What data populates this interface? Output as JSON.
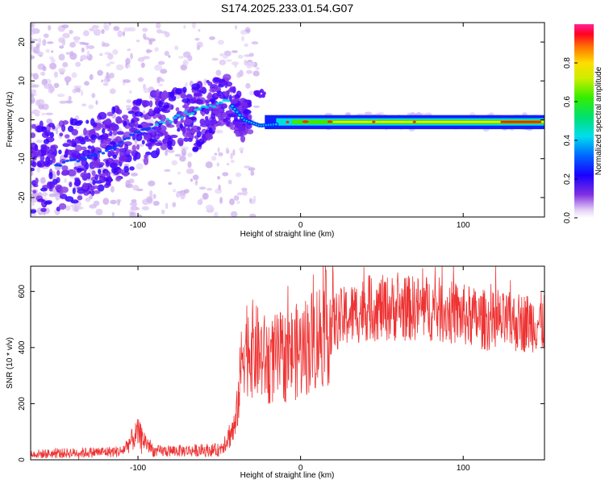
{
  "title": "S174.2025.233.01.54.G07",
  "chart_data": [
    {
      "type": "heatmap",
      "name": "spectrogram",
      "xlabel": "Height of straight line (km)",
      "ylabel": "Frequency (Hz)",
      "xlim": [
        -166,
        150
      ],
      "ylim": [
        -25,
        25
      ],
      "xticks": [
        -100,
        0,
        100
      ],
      "yticks": [
        20,
        10,
        0,
        -10,
        -20
      ],
      "colorbar": {
        "label": "Normalized spectral amplitude",
        "range": [
          0.0,
          1.0
        ],
        "ticks": [
          0.0,
          0.2,
          0.4,
          0.6,
          0.8
        ]
      },
      "ridge": [
        {
          "x": -150,
          "y": -12
        },
        {
          "x": -120,
          "y": -8
        },
        {
          "x": -100,
          "y": -3
        },
        {
          "x": -80,
          "y": 0
        },
        {
          "x": -60,
          "y": 3
        },
        {
          "x": -45,
          "y": 5
        },
        {
          "x": -35,
          "y": 0
        },
        {
          "x": -25,
          "y": -1.5
        },
        {
          "x": -10,
          "y": -1
        },
        {
          "x": 0,
          "y": -0.5
        },
        {
          "x": 20,
          "y": -0.5
        },
        {
          "x": 150,
          "y": -0.5
        }
      ]
    },
    {
      "type": "line",
      "name": "snr",
      "xlabel": "Height of straight line (km)",
      "ylabel": "SNR (10 * v/v)",
      "xlim": [
        -166,
        150
      ],
      "ylim": [
        0,
        690
      ],
      "xticks": [
        -100,
        0,
        100
      ],
      "yticks": [
        0,
        200,
        400,
        600
      ],
      "color": "#ee3333",
      "envelope": [
        {
          "x": -166,
          "y": 20
        },
        {
          "x": -110,
          "y": 30
        },
        {
          "x": -100,
          "y": 95
        },
        {
          "x": -90,
          "y": 30
        },
        {
          "x": -50,
          "y": 35
        },
        {
          "x": -40,
          "y": 120
        },
        {
          "x": -35,
          "y": 420
        },
        {
          "x": -20,
          "y": 350
        },
        {
          "x": 0,
          "y": 390
        },
        {
          "x": 20,
          "y": 490
        },
        {
          "x": 40,
          "y": 540
        },
        {
          "x": 80,
          "y": 540
        },
        {
          "x": 120,
          "y": 490
        },
        {
          "x": 150,
          "y": 490
        }
      ]
    }
  ]
}
